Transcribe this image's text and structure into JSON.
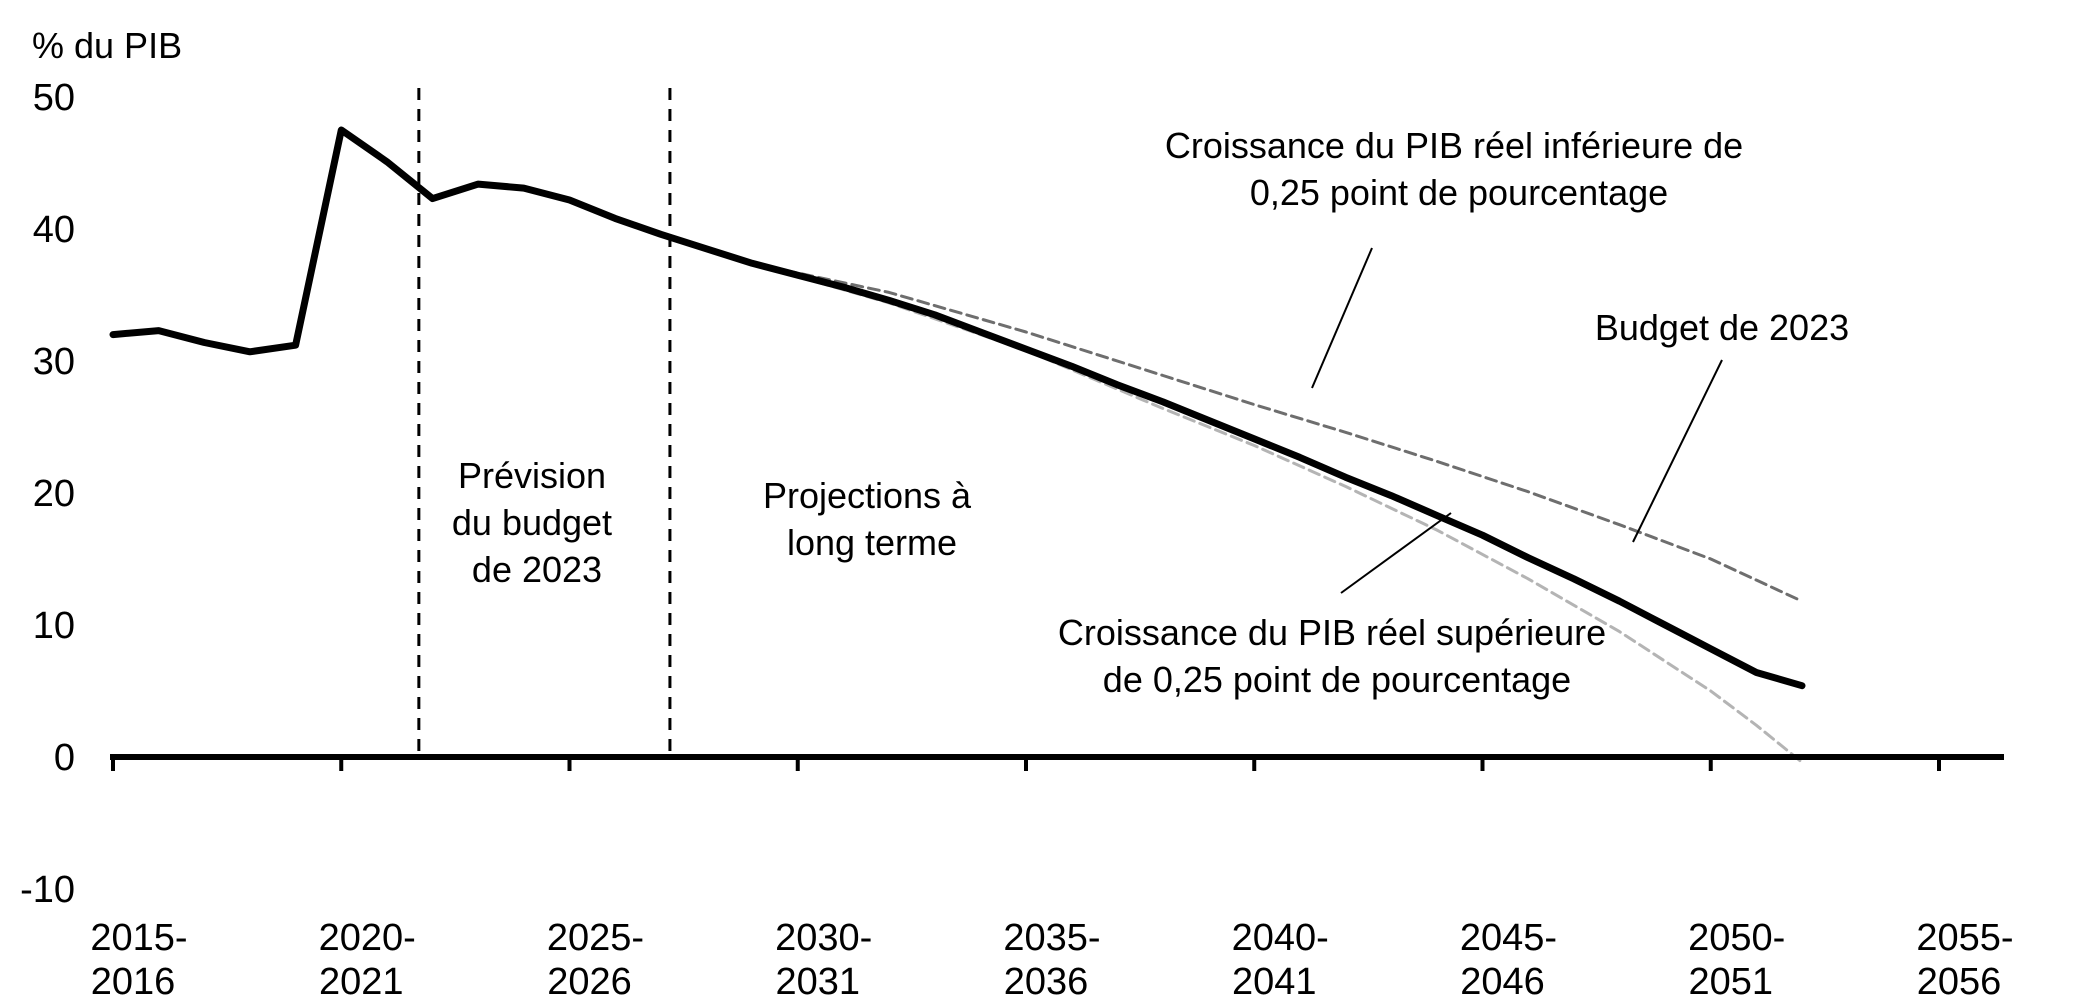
{
  "chart_data": {
    "type": "line",
    "ylabel": "% du PIB",
    "ylim": [
      -10,
      50
    ],
    "yticks": [
      50,
      40,
      30,
      20,
      10,
      0,
      -10
    ],
    "x_tick_labels": [
      {
        "year": 2015,
        "line1": "2015-",
        "line2": "2016"
      },
      {
        "year": 2020,
        "line1": "2020-",
        "line2": "2021"
      },
      {
        "year": 2025,
        "line1": "2025-",
        "line2": "2026"
      },
      {
        "year": 2030,
        "line1": "2030-",
        "line2": "2031"
      },
      {
        "year": 2035,
        "line1": "2035-",
        "line2": "2036"
      },
      {
        "year": 2040,
        "line1": "2040-",
        "line2": "2041"
      },
      {
        "year": 2045,
        "line1": "2045-",
        "line2": "2046"
      },
      {
        "year": 2050,
        "line1": "2050-",
        "line2": "2051"
      },
      {
        "year": 2055,
        "line1": "2055-",
        "line2": "2056"
      }
    ],
    "series": [
      {
        "name": "Budget de 2023",
        "color": "#000000",
        "style": "solid",
        "points": [
          [
            2015,
            32.0
          ],
          [
            2016,
            32.3
          ],
          [
            2017,
            31.4
          ],
          [
            2018,
            30.7
          ],
          [
            2019,
            31.2
          ],
          [
            2020,
            47.5
          ],
          [
            2021,
            45.1
          ],
          [
            2022,
            42.3
          ],
          [
            2023,
            43.4
          ],
          [
            2024,
            43.1
          ],
          [
            2025,
            42.2
          ],
          [
            2026,
            40.8
          ],
          [
            2027,
            39.6
          ],
          [
            2028,
            38.5
          ],
          [
            2029,
            37.4
          ],
          [
            2030,
            36.5
          ],
          [
            2031,
            35.6
          ],
          [
            2032,
            34.6
          ],
          [
            2033,
            33.5
          ],
          [
            2034,
            32.2
          ],
          [
            2035,
            30.9
          ],
          [
            2036,
            29.6
          ],
          [
            2037,
            28.2
          ],
          [
            2038,
            26.9
          ],
          [
            2039,
            25.5
          ],
          [
            2040,
            24.1
          ],
          [
            2041,
            22.7
          ],
          [
            2042,
            21.2
          ],
          [
            2043,
            19.8
          ],
          [
            2044,
            18.3
          ],
          [
            2045,
            16.8
          ],
          [
            2046,
            15.1
          ],
          [
            2047,
            13.5
          ],
          [
            2048,
            11.8
          ],
          [
            2049,
            10.0
          ],
          [
            2050,
            8.2
          ],
          [
            2051,
            6.4
          ],
          [
            2052,
            5.4
          ]
        ]
      },
      {
        "name": "Croissance du PIB réel inférieure de 0,25 point de pourcentage",
        "color": "#6e6e6e",
        "style": "dashed",
        "points": [
          [
            2029,
            37.4
          ],
          [
            2032,
            35.2
          ],
          [
            2035,
            32.2
          ],
          [
            2038,
            28.9
          ],
          [
            2040,
            26.7
          ],
          [
            2042,
            24.6
          ],
          [
            2044,
            22.4
          ],
          [
            2046,
            20.1
          ],
          [
            2048,
            17.6
          ],
          [
            2050,
            15.0
          ],
          [
            2052,
            11.8
          ]
        ]
      },
      {
        "name": "Croissance du PIB réel supérieure de 0,25 point de pourcentage",
        "color": "#b4b4b4",
        "style": "dashed",
        "points": [
          [
            2029,
            37.4
          ],
          [
            2032,
            34.4
          ],
          [
            2035,
            30.8
          ],
          [
            2038,
            26.4
          ],
          [
            2040,
            23.6
          ],
          [
            2042,
            20.5
          ],
          [
            2044,
            17.2
          ],
          [
            2046,
            13.5
          ],
          [
            2048,
            9.5
          ],
          [
            2050,
            5.0
          ],
          [
            2051,
            2.4
          ],
          [
            2052,
            -0.4
          ]
        ]
      }
    ],
    "vertical_markers": [
      {
        "name": "debut-prevision",
        "x": 2021.7
      },
      {
        "name": "debut-projections",
        "x": 2027.2
      }
    ],
    "annotations": {
      "prevision": [
        "Prévision",
        "du budget",
        "de 2023"
      ],
      "projections": [
        "Projections à",
        "long terme"
      ],
      "lower_growth": [
        "Croissance du PIB réel inférieure de",
        "0,25 point de pourcentage"
      ],
      "budget": [
        "Budget de 2023"
      ],
      "higher_growth": [
        "Croissance du PIB réel supérieure",
        "de 0,25 point de pourcentage"
      ]
    }
  }
}
